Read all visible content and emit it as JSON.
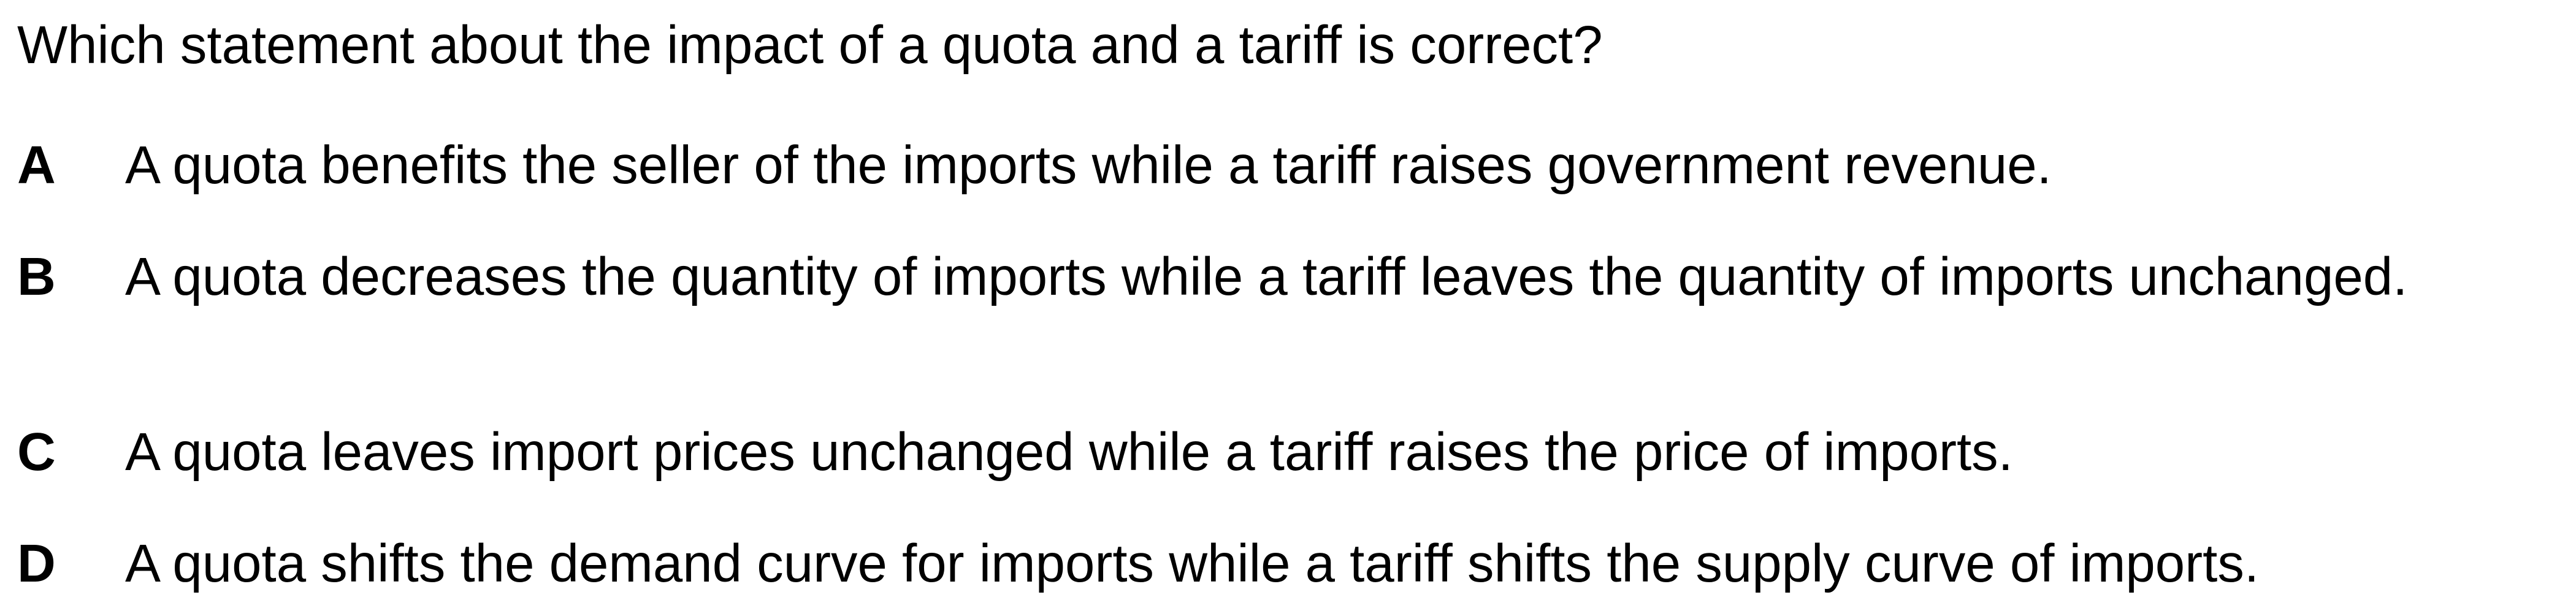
{
  "question": "Which statement about the impact of a quota and a tariff is correct?",
  "options": [
    {
      "letter": "A",
      "text": "A quota benefits the seller of the imports while a tariff raises government revenue."
    },
    {
      "letter": "B",
      "text": "A quota decreases the quantity of imports while a tariff leaves the quantity of imports unchanged."
    },
    {
      "letter": "C",
      "text": "A quota leaves import prices unchanged while a tariff raises the price of imports."
    },
    {
      "letter": "D",
      "text": "A quota shifts the demand curve for imports while a tariff shifts the supply curve of imports."
    }
  ]
}
